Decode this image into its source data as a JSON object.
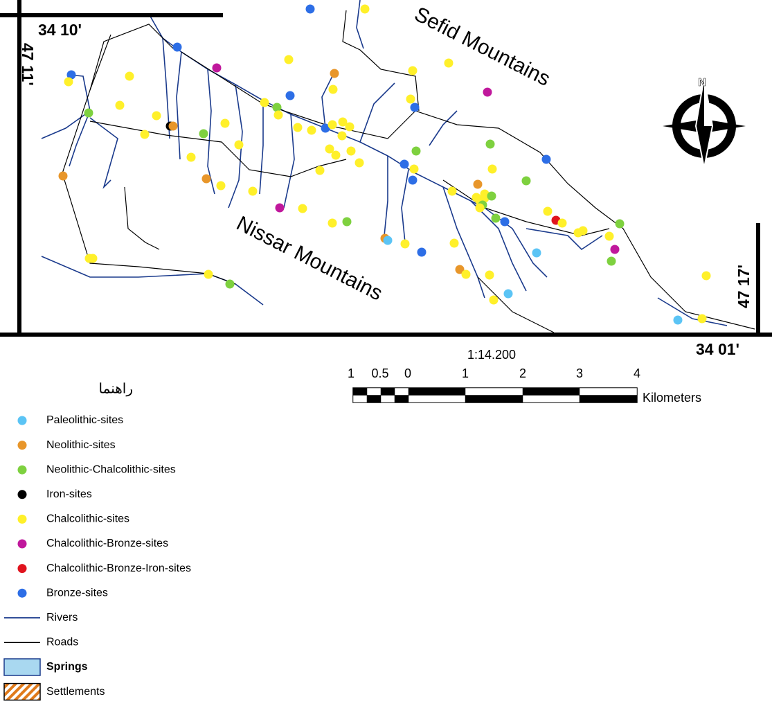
{
  "map": {
    "coordinates": {
      "top_left": "34 10'",
      "left_top": "47 11'",
      "right_bottom": "47 17'",
      "bottom_right": "34 01'"
    },
    "mountains": [
      "Sefid Mountains",
      "Nissar Mountains"
    ],
    "north": "N",
    "scale": {
      "ratio": "1:14.200",
      "ticks": [
        "1",
        "0.5",
        "0",
        "1",
        "2",
        "3",
        "4"
      ],
      "unit": "Kilometers"
    },
    "legend": {
      "title": "راهنما",
      "sites": [
        {
          "label": "Paleolithic-sites",
          "color": "#5bc4f5"
        },
        {
          "label": "Neolithic-sites",
          "color": "#e8962a"
        },
        {
          "label": "Neolithic-Chalcolithic-sites",
          "color": "#7ed13f"
        },
        {
          "label": "Iron-sites",
          "color": "#000000"
        },
        {
          "label": "Chalcolithic-sites",
          "color": "#fff02a"
        },
        {
          "label": "Chalcolithic-Bronze-sites",
          "color": "#c0189c"
        },
        {
          "label": "Chalcolithic-Bronze-Iron-sites",
          "color": "#e0141e"
        },
        {
          "label": "Bronze-sites",
          "color": "#2d6ee6"
        }
      ],
      "rivers": {
        "label": "Rivers",
        "color": "#1a3a8c"
      },
      "roads": {
        "label": "Roads",
        "color": "#000000"
      },
      "springs": {
        "label": "Springs",
        "color": "#a9d8f0"
      },
      "settlements": {
        "label": "Settlements",
        "color": "#e07a1a"
      }
    }
  }
}
